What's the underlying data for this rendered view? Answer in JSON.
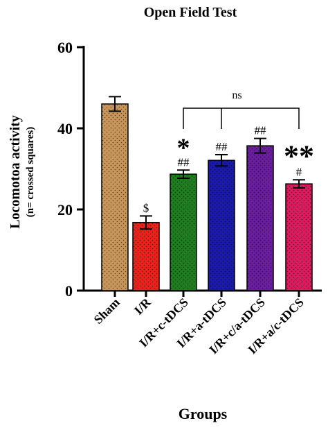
{
  "chart_data": {
    "type": "bar",
    "title": "Open Field Test",
    "xlabel": "Groups",
    "ylabel": "Locomotoa activity",
    "ylabel_sub": "(n= crossed squares)",
    "ylim": [
      0,
      60
    ],
    "yticks": [
      "0",
      "20",
      "40",
      "60"
    ],
    "categories": [
      "Sham",
      "I/R",
      "I/R+c-tDCS",
      "I/R+a-tDCS",
      "I/R+c/a-tDCS",
      "I/R+a/c-tDCS"
    ],
    "values": [
      46.0,
      16.8,
      28.7,
      32.1,
      35.7,
      26.3
    ],
    "errors": [
      1.8,
      1.6,
      1.0,
      1.4,
      1.8,
      1.0
    ],
    "colors": [
      "#c8965a",
      "#e8231c",
      "#1e7d1e",
      "#1a1aaa",
      "#6a1e9e",
      "#d81c5e"
    ],
    "annotations": [
      {
        "category": "I/R",
        "text": "$"
      },
      {
        "category": "I/R+c-tDCS",
        "text": "##",
        "star": "*"
      },
      {
        "category": "I/R+a-tDCS",
        "text": "##"
      },
      {
        "category": "I/R+c/a-tDCS",
        "text": "##"
      },
      {
        "category": "I/R+a/c-tDCS",
        "text": "#",
        "star": "**"
      }
    ],
    "bracket": {
      "from": "I/R+c-tDCS",
      "to": "I/R+a/c-tDCS",
      "label": "ns"
    },
    "legend": "none",
    "grid": false
  }
}
